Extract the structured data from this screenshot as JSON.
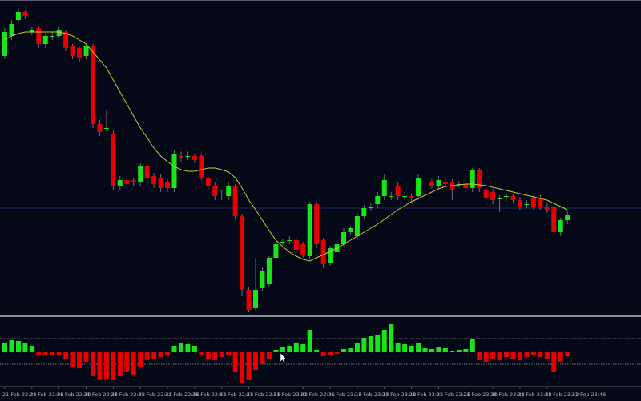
{
  "chart_data": [
    {
      "type": "candlestick",
      "ylim": [
        5,
        400
      ],
      "up_color": "#19e619",
      "down_color": "#e60000",
      "open": [
        330,
        355,
        375,
        385,
        360,
        365,
        345,
        355,
        355,
        360,
        342,
        340,
        330,
        342,
        245,
        240,
        232,
        168,
        175,
        175,
        172,
        192,
        180,
        178,
        172,
        165,
        205,
        205,
        205,
        205,
        178,
        168,
        158,
        155,
        168,
        130,
        38,
        15,
        40,
        45,
        78,
        98,
        100,
        100,
        95,
        80,
        145,
        100,
        72,
        85,
        95,
        110,
        105,
        130,
        140,
        145,
        155,
        155,
        168,
        155,
        155,
        155,
        168,
        172,
        168,
        172,
        172,
        170,
        170,
        165,
        187,
        162,
        160,
        152,
        155,
        155,
        150,
        145,
        152,
        152,
        142,
        142,
        110,
        125,
        null
      ],
      "high": [
        365,
        375,
        390,
        388,
        366,
        368,
        358,
        360,
        366,
        362,
        345,
        342,
        345,
        345,
        250,
        262,
        238,
        180,
        180,
        178,
        196,
        196,
        184,
        182,
        176,
        212,
        210,
        210,
        208,
        207,
        180,
        172,
        162,
        172,
        170,
        133,
        42,
        78,
        66,
        80,
        99,
        102,
        105,
        103,
        98,
        148,
        148,
        103,
        93,
        98,
        115,
        118,
        134,
        144,
        146,
        160,
        182,
        160,
        172,
        160,
        158,
        182,
        174,
        176,
        180,
        176,
        176,
        174,
        174,
        190,
        190,
        166,
        164,
        156,
        158,
        158,
        154,
        150,
        156,
        156,
        146,
        146,
        128,
        136,
        null
      ],
      "low": [
        326,
        350,
        372,
        376,
        356,
        340,
        340,
        350,
        352,
        336,
        326,
        322,
        326,
        240,
        230,
        236,
        162,
        162,
        165,
        168,
        168,
        174,
        165,
        160,
        160,
        160,
        198,
        200,
        196,
        175,
        162,
        150,
        150,
        150,
        126,
        30,
        10,
        12,
        36,
        42,
        74,
        94,
        95,
        84,
        78,
        76,
        90,
        65,
        68,
        80,
        92,
        106,
        100,
        126,
        136,
        140,
        150,
        150,
        150,
        150,
        148,
        150,
        162,
        164,
        164,
        166,
        150,
        166,
        160,
        160,
        160,
        148,
        145,
        135,
        150,
        146,
        138,
        140,
        138,
        138,
        134,
        106,
        105,
        120,
        null
      ],
      "close": [
        360,
        370,
        385,
        380,
        362,
        345,
        355,
        355,
        362,
        340,
        330,
        328,
        342,
        245,
        235,
        240,
        168,
        175,
        170,
        172,
        192,
        178,
        170,
        165,
        165,
        208,
        202,
        205,
        200,
        178,
        168,
        155,
        158,
        168,
        130,
        38,
        13,
        38,
        62,
        78,
        95,
        98,
        100,
        88,
        82,
        145,
        95,
        70,
        90,
        95,
        110,
        115,
        130,
        140,
        142,
        155,
        175,
        155,
        155,
        155,
        152,
        178,
        168,
        168,
        175,
        170,
        162,
        170,
        165,
        187,
        165,
        152,
        150,
        152,
        155,
        150,
        142,
        145,
        142,
        142,
        138,
        110,
        125,
        132,
        null
      ],
      "ma": {
        "color": "#c8c832",
        "values": [
          350,
          355,
          358,
          360,
          360,
          360,
          360,
          360,
          360,
          358,
          355,
          350,
          345,
          335,
          325,
          315,
          300,
          285,
          270,
          255,
          240,
          228,
          215,
          205,
          198,
          192,
          188,
          186,
          186,
          188,
          190,
          190,
          188,
          185,
          178,
          165,
          150,
          138,
          125,
          112,
          100,
          92,
          85,
          80,
          76,
          74,
          78,
          82,
          86,
          90,
          95,
          100,
          105,
          110,
          115,
          120,
          126,
          132,
          138,
          143,
          148,
          152,
          156,
          160,
          164,
          167,
          168,
          169,
          170,
          170,
          169,
          168,
          166,
          164,
          162,
          160,
          158,
          156,
          154,
          152,
          150,
          146,
          142,
          138,
          null
        ]
      },
      "hline": {
        "value": 140,
        "color": "#1c2a5c"
      }
    },
    {
      "type": "bar",
      "ylim": [
        -42,
        43
      ],
      "levels": [
        17,
        -15
      ],
      "positive_color": "#19e619",
      "negative_color": "#e60000",
      "categories": [
        "21 Feb 22:22",
        null,
        null,
        null,
        "21 Feb 22:26",
        null,
        null,
        null,
        "21 Feb 22:30",
        null,
        null,
        null,
        "21 Feb 22:34",
        null,
        null,
        null,
        "21 Feb 22:38",
        null,
        null,
        null,
        "21 Feb 22:42",
        null,
        null,
        null,
        "21 Feb 22:46",
        null,
        null,
        null,
        "21 Feb 22:50",
        null,
        null,
        null,
        "21 Feb 22:54",
        null,
        null,
        null,
        "21 Feb 22:58",
        null,
        null,
        null,
        "21 Feb 23:02",
        null,
        null,
        null,
        "21 Feb 23:06",
        null,
        null,
        null,
        "21 Feb 23:10",
        null,
        null,
        null,
        "21 Feb 23:14",
        null,
        null,
        null,
        "21 Feb 23:18",
        null,
        null,
        null,
        "21 Feb 23:22",
        null,
        null,
        null,
        "21 Feb 23:26",
        null,
        null,
        null,
        "21 Feb 23:30",
        null,
        null,
        null,
        "21 Feb 23:34",
        null,
        null,
        null,
        "21 Feb 23:38",
        null,
        null,
        null,
        "21 Feb 23:42",
        null,
        null,
        null,
        "21 Feb 23:46"
      ],
      "values": [
        12,
        15,
        14,
        12,
        8,
        -3,
        -4,
        -3,
        -3,
        -8,
        -18,
        -20,
        -12,
        -30,
        -35,
        -33,
        -35,
        -30,
        -25,
        -28,
        -18,
        -10,
        -8,
        -6,
        -4,
        8,
        12,
        10,
        8,
        -4,
        -8,
        -10,
        -6,
        -3,
        -25,
        -38,
        -35,
        -22,
        -15,
        -8,
        3,
        6,
        8,
        12,
        10,
        28,
        3,
        -5,
        -3,
        -2,
        4,
        5,
        12,
        18,
        20,
        22,
        28,
        35,
        12,
        10,
        8,
        12,
        5,
        4,
        6,
        5,
        2,
        3,
        4,
        17,
        -10,
        -12,
        -8,
        -10,
        -6,
        -8,
        -10,
        -6,
        -3,
        -6,
        -8,
        -25,
        -12,
        -5,
        null
      ]
    }
  ]
}
